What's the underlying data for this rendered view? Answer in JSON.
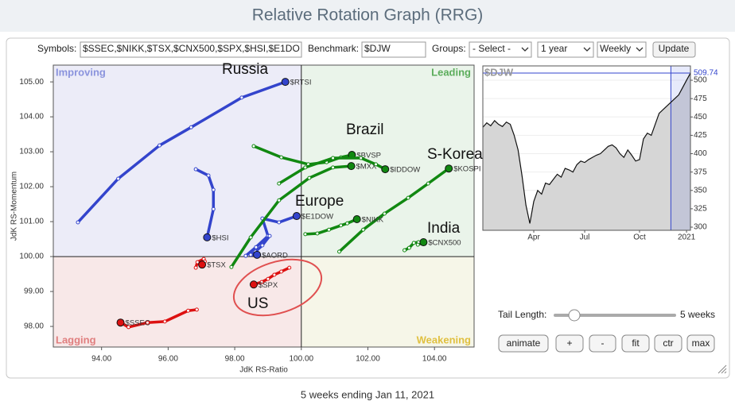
{
  "header": {
    "title": "Relative Rotation Graph (RRG)"
  },
  "controls": {
    "symbols_label": "Symbols:",
    "symbols_value": "$SSEC,$NIKK,$TSX,$CNX500,$SPX,$HSI,$E1DO",
    "benchmark_label": "Benchmark:",
    "benchmark_value": "$DJW",
    "groups_label": "Groups:",
    "groups_value": "- Select -",
    "period_value": "1 year",
    "frequency_value": "Weekly",
    "update_button": "Update",
    "tail_length_label": "Tail Length:",
    "tail_length_value": "5 weeks",
    "buttons": [
      "animate",
      "+",
      "-",
      "fit",
      "ctr",
      "max"
    ]
  },
  "chart_data": [
    {
      "type": "scatter",
      "x_label": "JdK RS-Ratio",
      "y_label": "JdK RS-Momentum",
      "xlim": [
        92.55,
        105.19
      ],
      "ylim": [
        97.41,
        105.48
      ],
      "xticks": [
        {
          "value": 94,
          "label": "94.00"
        },
        {
          "value": 96,
          "label": "96.00"
        },
        {
          "value": 98,
          "label": "98.00"
        },
        {
          "value": 100,
          "label": "100.00"
        },
        {
          "value": 102,
          "label": "102.00"
        },
        {
          "value": 104,
          "label": "104.00"
        }
      ],
      "yticks": [
        {
          "value": 98,
          "label": "98.00"
        },
        {
          "value": 99,
          "label": "99.00"
        },
        {
          "value": 100,
          "label": "100.00"
        },
        {
          "value": 101,
          "label": "101.00"
        },
        {
          "value": 102,
          "label": "102.00"
        },
        {
          "value": 103,
          "label": "103.00"
        },
        {
          "value": 104,
          "label": "104.00"
        },
        {
          "value": 105,
          "label": "105.00"
        }
      ],
      "quadrant_center": [
        100,
        100
      ],
      "quadrants": [
        {
          "name": "Improving",
          "color": "#8a93dd",
          "background": "#ececf8"
        },
        {
          "name": "Leading",
          "color": "#5cad5c",
          "background": "#eaf4ea"
        },
        {
          "name": "Lagging",
          "color": "#e07f7f",
          "background": "#f8e8e8"
        },
        {
          "name": "Weakening",
          "color": "#e0c040",
          "background": "#f6f6e8"
        }
      ],
      "annotations": [
        "Russia",
        "Brazil",
        "S-Korea",
        "Europe",
        "India",
        "US"
      ],
      "series": [
        {
          "name": "$RTSI",
          "color": "#3344cc",
          "x": [
            93.29,
            94.5,
            95.74,
            96.69,
            98.21,
            99.52
          ],
          "values": [
            100.98,
            102.23,
            103.18,
            103.7,
            104.55,
            105.0
          ]
        },
        {
          "name": "$HSI",
          "color": "#3344cc",
          "x": [
            96.83,
            97.21,
            97.36,
            97.36,
            97.17
          ],
          "values": [
            102.5,
            102.32,
            101.91,
            101.36,
            100.55
          ]
        },
        {
          "name": "$E1DOW",
          "color": "#3344cc",
          "x": [
            98.33,
            98.64,
            99.0,
            98.83,
            99.33,
            99.86
          ],
          "values": [
            100.02,
            100.27,
            100.59,
            101.09,
            100.98,
            101.16
          ]
        },
        {
          "name": "$AORD",
          "color": "#3344cc",
          "x": [
            99.05,
            98.83,
            98.62,
            98.48,
            98.67
          ],
          "values": [
            100.59,
            100.32,
            100.14,
            100.05,
            100.05
          ]
        },
        {
          "name": "$TSX",
          "color": "#dd1111",
          "x": [
            96.83,
            96.88,
            97.07,
            97.1,
            97.02
          ],
          "values": [
            99.68,
            99.84,
            99.93,
            99.86,
            99.77
          ]
        },
        {
          "name": "$SPX",
          "color": "#dd1111",
          "x": [
            99.64,
            99.4,
            99.19,
            99.0,
            98.81,
            98.57
          ],
          "values": [
            99.68,
            99.57,
            99.48,
            99.36,
            99.27,
            99.2
          ]
        },
        {
          "name": "$SSEC",
          "color": "#dd1111",
          "x": [
            96.86,
            96.6,
            95.9,
            95.38,
            94.81,
            94.57
          ],
          "values": [
            98.48,
            98.45,
            98.14,
            98.11,
            97.98,
            98.11
          ]
        },
        {
          "name": "$BVSP",
          "color": "#118811",
          "x": [
            98.57,
            99.4,
            100.21,
            100.76,
            101.19,
            101.52
          ],
          "values": [
            103.16,
            102.84,
            102.64,
            102.7,
            102.84,
            102.91
          ]
        },
        {
          "name": "$MXX",
          "color": "#118811",
          "x": [
            97.9,
            98.48,
            99.33,
            100.24,
            100.95,
            101.5
          ],
          "values": [
            99.7,
            100.55,
            101.61,
            102.25,
            102.55,
            102.59
          ]
        },
        {
          "name": "$IDDOW",
          "color": "#118811",
          "x": [
            99.33,
            100.12,
            100.95,
            101.79,
            102.24,
            102.52
          ],
          "values": [
            102.09,
            102.55,
            102.82,
            102.82,
            102.64,
            102.5
          ]
        },
        {
          "name": "$KOSPI",
          "color": "#118811",
          "x": [
            101.14,
            101.86,
            102.5,
            103.21,
            103.81,
            104.43
          ],
          "values": [
            100.14,
            100.77,
            101.23,
            101.68,
            102.09,
            102.52
          ]
        },
        {
          "name": "$NIKK",
          "color": "#118811",
          "x": [
            100.12,
            100.48,
            100.83,
            101.19,
            101.38,
            101.67
          ],
          "values": [
            100.64,
            100.66,
            100.77,
            100.89,
            100.95,
            101.07
          ]
        },
        {
          "name": "$CNX500",
          "color": "#118811",
          "x": [
            103.1,
            103.24,
            103.38,
            103.52,
            103.5,
            103.67
          ],
          "values": [
            100.18,
            100.25,
            100.39,
            100.41,
            100.34,
            100.41
          ]
        }
      ]
    },
    {
      "type": "line",
      "title": "$DJW",
      "color": "#111111",
      "values": [
        436,
        442,
        438,
        445,
        440,
        437,
        443,
        440,
        425,
        405,
        370,
        330,
        305,
        335,
        350,
        345,
        360,
        358,
        365,
        372,
        368,
        380,
        378,
        375,
        385,
        390,
        388,
        392,
        395,
        398,
        400,
        405,
        410,
        412,
        408,
        400,
        395,
        405,
        398,
        390,
        392,
        420,
        428,
        425,
        440,
        455,
        460,
        465,
        470,
        475,
        480,
        490,
        500,
        509.74
      ],
      "xlim": [
        0,
        53
      ],
      "ylim": [
        295.7,
        519.5
      ],
      "xticks": [
        {
          "value": 13,
          "label": "Apr"
        },
        {
          "value": 26,
          "label": "Jul"
        },
        {
          "value": 40,
          "label": "Oct"
        },
        {
          "value": 52,
          "label": "2021"
        }
      ],
      "yticks": [
        300,
        325,
        350,
        375,
        400,
        425,
        450,
        475,
        500
      ]
    }
  ],
  "footer": "5 weeks ending Jan 11, 2021"
}
